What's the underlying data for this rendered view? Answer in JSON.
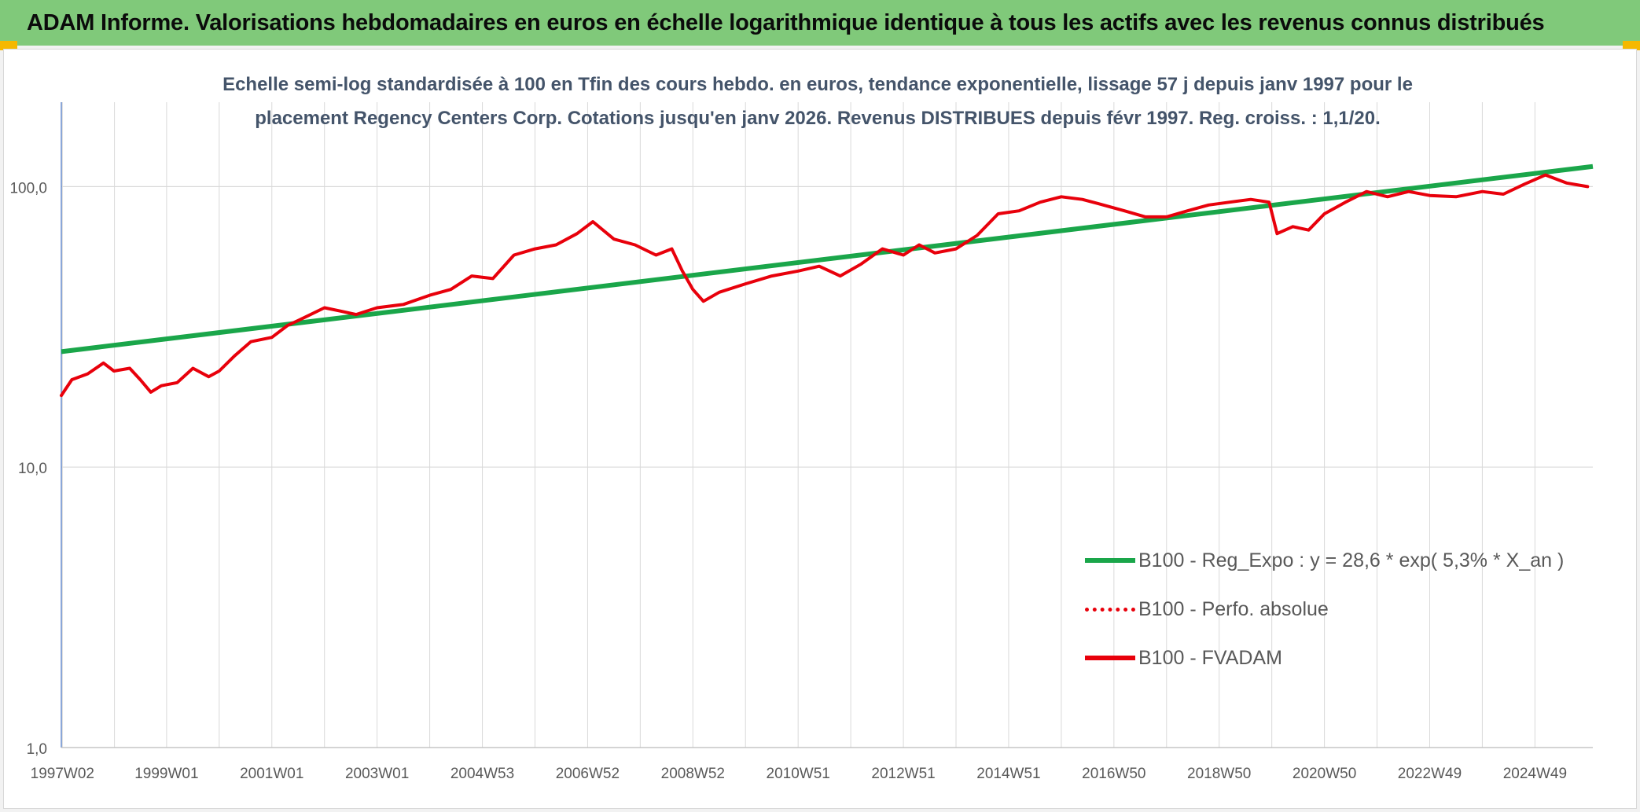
{
  "banner": {
    "title": "ADAM Informe. Valorisations hebdomadaires en euros en échelle logarithmique identique à tous les actifs avec les revenus connus distribués"
  },
  "subtitle": {
    "line1": "Echelle semi-log standardisée à 100 en Tfin des cours hebdo. en euros, tendance exponentielle, lissage 57 j depuis janv 1997 pour le",
    "line2": "placement Regency Centers Corp. Cotations jusqu'en janv 2026. Revenus DISTRIBUES depuis févr 1997. Reg. croiss. : 1,1/20."
  },
  "colors": {
    "banner": "#80c97a",
    "trend": "#1aa64a",
    "fvadam": "#e8000b",
    "perfo": "#e8000b",
    "axis_text": "#595959",
    "subtitle": "#44546a",
    "grid": "#d9d9d9"
  },
  "chart_data": {
    "type": "line",
    "y_scale": "log",
    "ylim": [
      1,
      200
    ],
    "x_range": [
      1997.0,
      2026.1
    ],
    "y_ticks": [
      1,
      10,
      100
    ],
    "y_tick_labels": [
      "1,0",
      "10,0",
      "100,0"
    ],
    "x_tick_labels": [
      "1997W02",
      "1999W01",
      "2001W01",
      "2003W01",
      "2004W53",
      "2006W52",
      "2008W52",
      "2010W51",
      "2012W51",
      "2014W51",
      "2016W50",
      "2018W50",
      "2020W50",
      "2022W49",
      "2024W49"
    ],
    "x_tick_years": [
      1997.02,
      1999.0,
      2001.0,
      2003.0,
      2005.0,
      2007.0,
      2009.0,
      2011.0,
      2013.0,
      2015.0,
      2017.0,
      2019.0,
      2021.0,
      2023.0,
      2025.0
    ],
    "grid": true,
    "legend_position": "bottom-right",
    "series": [
      {
        "name": "B100 - Reg_Expo : y = 28,6 * exp( 5,3% *  X_an )",
        "style": "solid",
        "color": "#1aa64a",
        "x": [
          1997.0,
          2026.1
        ],
        "y": [
          25.8,
          118.0
        ]
      },
      {
        "name": "B100 - Perfo. absolue",
        "style": "dotted",
        "color": "#e8000b",
        "x": [],
        "y": []
      },
      {
        "name": "B100 - FVADAM",
        "style": "solid",
        "color": "#e8000b",
        "x": [
          1997.0,
          1997.2,
          1997.5,
          1997.8,
          1998.0,
          1998.3,
          1998.5,
          1998.7,
          1998.9,
          1999.2,
          1999.5,
          1999.8,
          2000.0,
          2000.3,
          2000.6,
          2001.0,
          2001.3,
          2001.6,
          2002.0,
          2002.3,
          2002.6,
          2003.0,
          2003.5,
          2004.0,
          2004.4,
          2004.8,
          2005.2,
          2005.6,
          2006.0,
          2006.4,
          2006.8,
          2007.1,
          2007.5,
          2007.9,
          2008.3,
          2008.6,
          2008.8,
          2009.0,
          2009.2,
          2009.5,
          2010.0,
          2010.5,
          2011.0,
          2011.4,
          2011.8,
          2012.2,
          2012.6,
          2013.0,
          2013.3,
          2013.6,
          2014.0,
          2014.4,
          2014.8,
          2015.2,
          2015.6,
          2016.0,
          2016.4,
          2016.8,
          2017.2,
          2017.6,
          2018.0,
          2018.4,
          2018.8,
          2019.2,
          2019.6,
          2019.95,
          2020.1,
          2020.4,
          2020.7,
          2021.0,
          2021.4,
          2021.8,
          2022.2,
          2022.6,
          2023.0,
          2023.5,
          2024.0,
          2024.4,
          2024.8,
          2025.2,
          2025.6,
          2026.0
        ],
        "y": [
          18.0,
          20.5,
          21.5,
          23.5,
          22.0,
          22.5,
          20.5,
          18.5,
          19.5,
          20.0,
          22.5,
          21.0,
          22.0,
          25.0,
          28.0,
          29.0,
          32.0,
          34.0,
          37.0,
          36.0,
          35.0,
          37.0,
          38.0,
          41.0,
          43.0,
          48.0,
          47.0,
          57.0,
          60.0,
          62.0,
          68.0,
          75.0,
          65.0,
          62.0,
          57.0,
          60.0,
          50.0,
          43.0,
          39.0,
          42.0,
          45.0,
          48.0,
          50.0,
          52.0,
          48.0,
          53.0,
          60.0,
          57.0,
          62.0,
          58.0,
          60.0,
          67.0,
          80.0,
          82.0,
          88.0,
          92.0,
          90.0,
          86.0,
          82.0,
          78.0,
          78.0,
          82.0,
          86.0,
          88.0,
          90.0,
          88.0,
          68.0,
          72.0,
          70.0,
          80.0,
          88.0,
          96.0,
          92.0,
          96.0,
          93.0,
          92.0,
          96.0,
          94.0,
          102.0,
          110.0,
          103.0,
          100.0
        ]
      }
    ]
  }
}
